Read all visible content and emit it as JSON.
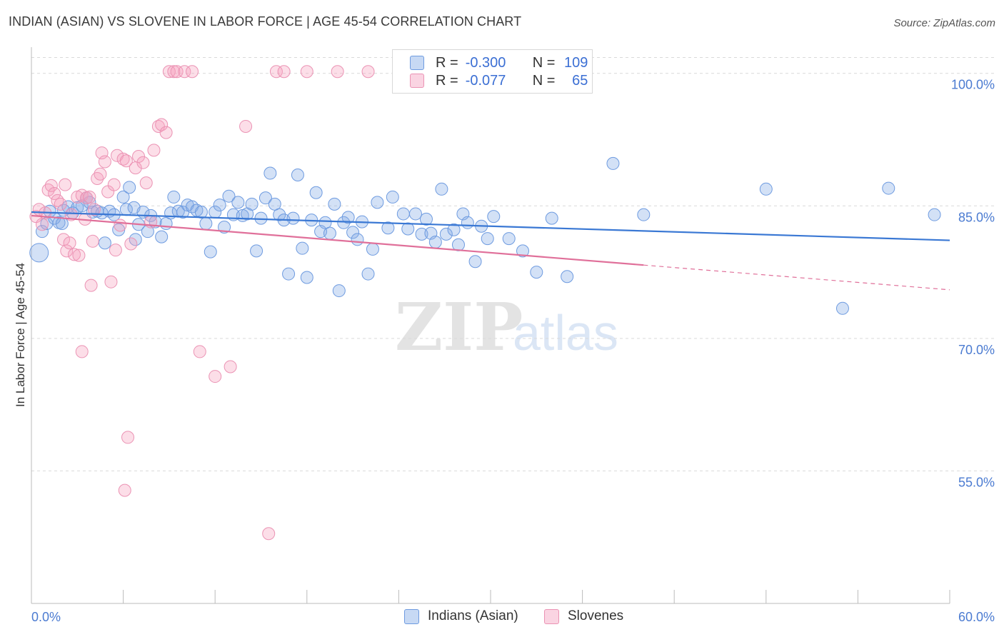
{
  "title": "INDIAN (ASIAN) VS SLOVENE IN LABOR FORCE | AGE 45-54 CORRELATION CHART",
  "source": "Source: ZipAtlas.com",
  "watermark": {
    "zip": "ZIP",
    "atlas": "atlas"
  },
  "legend": {
    "r_label": "R =",
    "n_label": "N =",
    "rows": [
      {
        "r": "-0.300",
        "n": "109"
      },
      {
        "r": "-0.077",
        "n": "65"
      }
    ]
  },
  "colors": {
    "blue": "#3a78d4",
    "blue_fill": "rgba(130,170,230,0.35)",
    "blue_stroke": "#6e9be0",
    "pink": "#e0709a",
    "pink_fill": "rgba(245,160,190,0.35)",
    "pink_stroke": "#eb93b4",
    "tick_text": "#4b7bd1",
    "grid": "#d9d9d9"
  },
  "chart_data": {
    "type": "scatter",
    "title": "INDIAN (ASIAN) VS SLOVENE IN LABOR FORCE | AGE 45-54 CORRELATION CHART",
    "xlabel": "",
    "ylabel": "In Labor Force | Age 45-54",
    "xlim": [
      0,
      60
    ],
    "ylim": [
      40,
      102
    ],
    "x_tick_labels": [
      "0.0%",
      "60.0%"
    ],
    "y_ticks": [
      55,
      70,
      85,
      100
    ],
    "y_tick_labels": [
      "55.0%",
      "70.0%",
      "85.0%",
      "100.0%"
    ],
    "grid": true,
    "legend_position": "top-center",
    "series": [
      {
        "name": "Indians (Asian)",
        "r": -0.3,
        "n": 109,
        "trend": {
          "x0": 0,
          "y0": 84.3,
          "x1": 60,
          "y1": 81.1,
          "dashed_from": null
        },
        "points": [
          [
            0.5,
            79.7
          ],
          [
            0.7,
            82.1
          ],
          [
            1.0,
            83.0
          ],
          [
            1.2,
            84.4
          ],
          [
            1.5,
            83.6
          ],
          [
            1.8,
            83.1
          ],
          [
            2.1,
            84.5
          ],
          [
            2.4,
            84.9
          ],
          [
            2.7,
            84.2
          ],
          [
            3.0,
            84.8
          ],
          [
            3.3,
            85.0
          ],
          [
            3.6,
            85.9
          ],
          [
            4.0,
            84.3
          ],
          [
            4.3,
            84.4
          ],
          [
            4.6,
            84.2
          ],
          [
            4.8,
            80.8
          ],
          [
            5.1,
            84.4
          ],
          [
            5.4,
            84.0
          ],
          [
            5.7,
            82.3
          ],
          [
            6.0,
            86.0
          ],
          [
            6.2,
            84.6
          ],
          [
            6.4,
            87.1
          ],
          [
            6.7,
            84.8
          ],
          [
            7.0,
            82.9
          ],
          [
            7.3,
            84.3
          ],
          [
            7.6,
            82.1
          ],
          [
            7.8,
            83.9
          ],
          [
            8.1,
            83.2
          ],
          [
            8.5,
            81.5
          ],
          [
            8.8,
            83.0
          ],
          [
            9.1,
            84.2
          ],
          [
            9.3,
            86.0
          ],
          [
            9.6,
            84.4
          ],
          [
            9.9,
            84.3
          ],
          [
            10.2,
            85.1
          ],
          [
            10.5,
            84.9
          ],
          [
            10.8,
            84.5
          ],
          [
            11.1,
            84.3
          ],
          [
            11.4,
            83.0
          ],
          [
            11.7,
            79.8
          ],
          [
            12.0,
            84.3
          ],
          [
            12.3,
            85.1
          ],
          [
            12.6,
            82.6
          ],
          [
            12.9,
            86.1
          ],
          [
            13.2,
            84.0
          ],
          [
            13.5,
            85.4
          ],
          [
            13.8,
            83.9
          ],
          [
            14.1,
            84.1
          ],
          [
            14.4,
            85.2
          ],
          [
            14.7,
            79.9
          ],
          [
            15.0,
            83.6
          ],
          [
            15.3,
            85.9
          ],
          [
            15.6,
            88.7
          ],
          [
            15.9,
            85.2
          ],
          [
            16.2,
            84.0
          ],
          [
            16.5,
            83.4
          ],
          [
            16.8,
            77.3
          ],
          [
            17.1,
            83.6
          ],
          [
            17.4,
            88.5
          ],
          [
            17.7,
            80.2
          ],
          [
            18.0,
            76.9
          ],
          [
            18.3,
            83.4
          ],
          [
            18.6,
            86.5
          ],
          [
            18.9,
            82.1
          ],
          [
            19.2,
            83.1
          ],
          [
            19.5,
            81.9
          ],
          [
            19.8,
            85.2
          ],
          [
            20.1,
            75.4
          ],
          [
            20.4,
            83.1
          ],
          [
            20.7,
            83.7
          ],
          [
            21.0,
            82.0
          ],
          [
            21.3,
            81.2
          ],
          [
            21.6,
            83.2
          ],
          [
            22.0,
            77.3
          ],
          [
            22.3,
            80.1
          ],
          [
            22.6,
            85.4
          ],
          [
            23.3,
            82.5
          ],
          [
            23.6,
            86.0
          ],
          [
            24.3,
            84.1
          ],
          [
            24.6,
            82.4
          ],
          [
            25.1,
            84.1
          ],
          [
            25.5,
            81.8
          ],
          [
            25.8,
            83.5
          ],
          [
            26.1,
            81.9
          ],
          [
            26.4,
            80.9
          ],
          [
            26.8,
            86.9
          ],
          [
            27.1,
            81.8
          ],
          [
            27.6,
            82.3
          ],
          [
            27.9,
            80.6
          ],
          [
            28.2,
            84.1
          ],
          [
            28.5,
            83.1
          ],
          [
            29.0,
            78.7
          ],
          [
            29.4,
            82.7
          ],
          [
            29.8,
            81.3
          ],
          [
            30.2,
            83.8
          ],
          [
            31.2,
            81.3
          ],
          [
            32.1,
            79.9
          ],
          [
            33.0,
            77.5
          ],
          [
            34.0,
            83.6
          ],
          [
            35.0,
            77.0
          ],
          [
            38.0,
            89.8
          ],
          [
            40.0,
            84.0
          ],
          [
            48.0,
            86.9
          ],
          [
            53.0,
            73.4
          ],
          [
            56.0,
            87.0
          ],
          [
            59.0,
            84.0
          ],
          [
            2.0,
            83.0
          ],
          [
            3.8,
            85.4
          ],
          [
            6.8,
            81.2
          ]
        ]
      },
      {
        "name": "Slovenes",
        "r": -0.077,
        "n": 65,
        "trend": {
          "x0": 0,
          "y0": 83.9,
          "x1": 60,
          "y1": 75.5,
          "dashed_from": 40
        },
        "points": [
          [
            0.3,
            83.8
          ],
          [
            0.5,
            84.6
          ],
          [
            0.7,
            82.9
          ],
          [
            0.9,
            84.2
          ],
          [
            1.1,
            86.8
          ],
          [
            1.3,
            87.3
          ],
          [
            1.5,
            86.4
          ],
          [
            1.7,
            85.6
          ],
          [
            1.9,
            85.2
          ],
          [
            2.1,
            81.2
          ],
          [
            2.2,
            87.4
          ],
          [
            2.3,
            79.9
          ],
          [
            2.5,
            80.8
          ],
          [
            2.6,
            84.0
          ],
          [
            2.8,
            79.5
          ],
          [
            3.0,
            86.0
          ],
          [
            3.1,
            79.4
          ],
          [
            3.3,
            86.2
          ],
          [
            3.5,
            83.5
          ],
          [
            3.6,
            85.9
          ],
          [
            3.8,
            86.0
          ],
          [
            4.0,
            81.0
          ],
          [
            4.1,
            84.6
          ],
          [
            4.3,
            88.1
          ],
          [
            4.5,
            88.6
          ],
          [
            4.6,
            91.0
          ],
          [
            4.8,
            90.0
          ],
          [
            5.0,
            86.6
          ],
          [
            5.2,
            76.4
          ],
          [
            5.4,
            87.4
          ],
          [
            5.5,
            80.0
          ],
          [
            5.6,
            90.7
          ],
          [
            5.8,
            82.8
          ],
          [
            6.0,
            90.3
          ],
          [
            6.2,
            90.1
          ],
          [
            6.5,
            80.7
          ],
          [
            6.8,
            89.3
          ],
          [
            7.0,
            90.6
          ],
          [
            7.3,
            89.9
          ],
          [
            7.5,
            87.6
          ],
          [
            7.8,
            83.2
          ],
          [
            8.0,
            91.3
          ],
          [
            8.3,
            94.0
          ],
          [
            8.5,
            94.2
          ],
          [
            8.8,
            93.3
          ],
          [
            9.0,
            100.2
          ],
          [
            9.3,
            100.2
          ],
          [
            9.5,
            100.2
          ],
          [
            10.0,
            100.2
          ],
          [
            10.5,
            100.2
          ],
          [
            11.0,
            68.5
          ],
          [
            12.0,
            65.7
          ],
          [
            13.0,
            66.8
          ],
          [
            14.0,
            94.0
          ],
          [
            15.5,
            47.9
          ],
          [
            16.0,
            100.2
          ],
          [
            16.5,
            100.2
          ],
          [
            18.0,
            100.2
          ],
          [
            20.0,
            100.2
          ],
          [
            22.0,
            100.2
          ],
          [
            24.0,
            100.2
          ],
          [
            3.9,
            76.0
          ],
          [
            3.3,
            68.5
          ],
          [
            6.3,
            58.8
          ],
          [
            6.1,
            52.8
          ]
        ]
      }
    ]
  },
  "bottom_legend": [
    {
      "label": "Indians (Asian)"
    },
    {
      "label": "Slovenes"
    }
  ]
}
